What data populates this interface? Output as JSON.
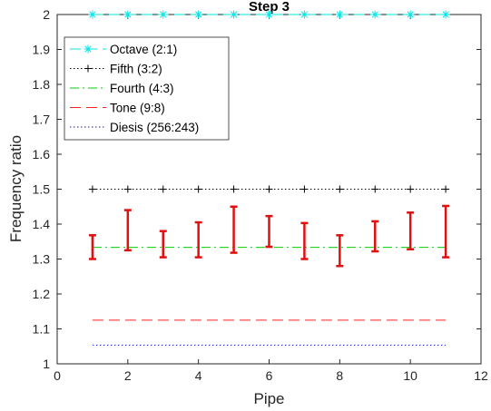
{
  "chart_data": {
    "type": "line",
    "title": "Step 3",
    "xlabel": "Pipe",
    "ylabel": "Frequency ratio",
    "xlim": [
      0,
      12
    ],
    "ylim": [
      1,
      2
    ],
    "xticks": [
      0,
      2,
      4,
      6,
      8,
      10,
      12
    ],
    "yticks": [
      1,
      1.1,
      1.2,
      1.3,
      1.4,
      1.5,
      1.6,
      1.7,
      1.8,
      1.9,
      2
    ],
    "xtick_labels": [
      "0",
      "2",
      "4",
      "6",
      "8",
      "10",
      "12"
    ],
    "ytick_labels": [
      "1",
      "1.1",
      "1.2",
      "1.3",
      "1.4",
      "1.5",
      "1.6",
      "1.7",
      "1.8",
      "1.9",
      "2"
    ],
    "grid": false,
    "legend_position": "top-left",
    "x": [
      1,
      2,
      3,
      4,
      5,
      6,
      7,
      8,
      9,
      10,
      11
    ],
    "series": [
      {
        "name": "Octave (2:1)",
        "value": 2.0,
        "color": "#00e5e5",
        "line_style": "dashed",
        "marker": "asterisk"
      },
      {
        "name": "Fifth (3:2)",
        "value": 1.5,
        "color": "#000000",
        "line_style": "dotted",
        "marker": "plus"
      },
      {
        "name": "Fourth (4:3)",
        "value": 1.3333,
        "color": "#00d000",
        "line_style": "dashdot",
        "marker": "none"
      },
      {
        "name": "Tone (9:8)",
        "value": 1.125,
        "color": "#ff2020",
        "line_style": "dashed",
        "marker": "none"
      },
      {
        "name": "Diesis (256:243)",
        "value": 1.0535,
        "color": "#1a1ad0",
        "line_style": "dotted",
        "marker": "none"
      }
    ],
    "error_bars": {
      "color": "#e01010",
      "x": [
        1,
        2,
        3,
        4,
        5,
        6,
        7,
        8,
        9,
        10,
        11
      ],
      "low": [
        1.3,
        1.325,
        1.305,
        1.305,
        1.318,
        1.335,
        1.3,
        1.28,
        1.322,
        1.328,
        1.305
      ],
      "high": [
        1.368,
        1.44,
        1.38,
        1.405,
        1.45,
        1.423,
        1.403,
        1.368,
        1.408,
        1.433,
        1.452
      ]
    }
  }
}
